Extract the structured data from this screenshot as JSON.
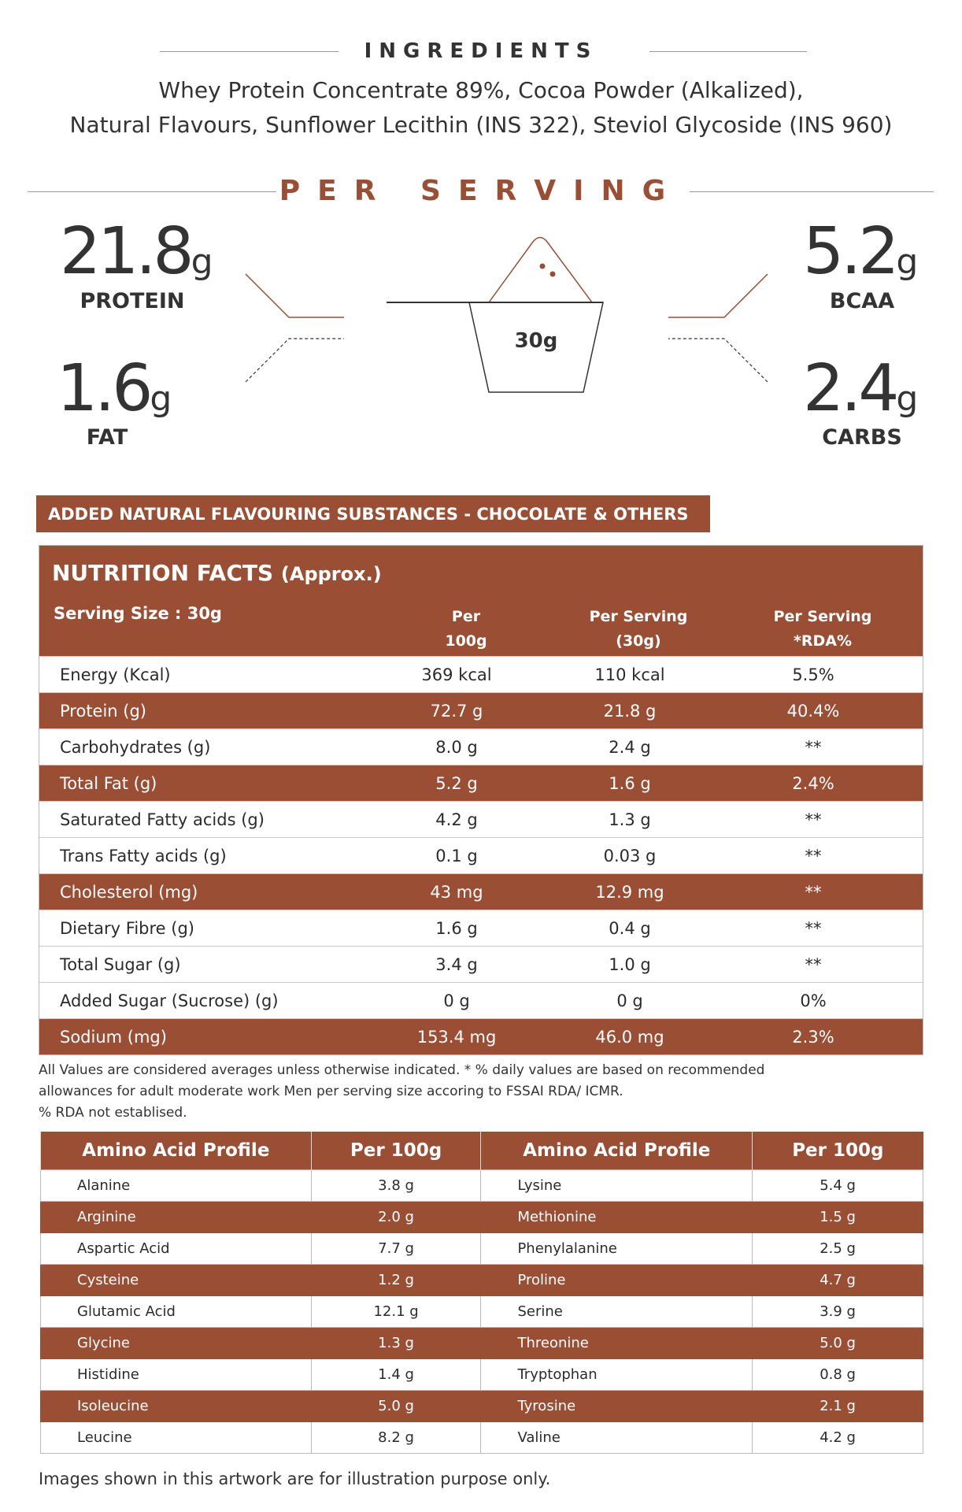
{
  "ingredients": {
    "title": "INGREDIENTS",
    "lines": [
      "Whey Protein Concentrate 89%, Cocoa Powder (Alkalized),",
      "Natural Flavours, Sunflower Lecithin (INS 322), Steviol Glycoside (INS 960)"
    ]
  },
  "per_serving": {
    "title": "PER SERVING",
    "scoop_label": "30g",
    "protein": {
      "value": "21.8",
      "unit": "g",
      "label": "PROTEIN"
    },
    "fat": {
      "value": "1.6",
      "unit": "g",
      "label": "FAT"
    },
    "bcaa": {
      "value": "5.2",
      "unit": "g",
      "label": "BCAA"
    },
    "carbs": {
      "value": "2.4",
      "unit": "g",
      "label": "CARBS"
    }
  },
  "banner": "ADDED NATURAL FLAVOURING SUBSTANCES - CHOCOLATE & OTHERS",
  "nutrition": {
    "title": "NUTRITION FACTS",
    "title_suffix": "(Approx.)",
    "serving_size": "Serving Size : 30g",
    "headers": [
      [
        "Per",
        "100g"
      ],
      [
        "Per Serving",
        "(30g)"
      ],
      [
        "Per Serving",
        "*RDA%"
      ]
    ],
    "rows": [
      [
        "Energy (Kcal)",
        "369 kcal",
        "110 kcal",
        "5.5%",
        false
      ],
      [
        "Protein (g)",
        "72.7 g",
        "21.8 g",
        "40.4%",
        true
      ],
      [
        "Carbohydrates (g)",
        "8.0 g",
        "2.4 g",
        "**",
        false
      ],
      [
        "Total Fat (g)",
        "5.2 g",
        "1.6 g",
        "2.4%",
        true
      ],
      [
        "Saturated Fatty acids (g)",
        "4.2 g",
        "1.3 g",
        "**",
        false
      ],
      [
        "Trans Fatty acids (g)",
        "0.1 g",
        "0.03 g",
        "**",
        false
      ],
      [
        "Cholesterol (mg)",
        "43 mg",
        "12.9 mg",
        "**",
        true
      ],
      [
        "Dietary Fibre (g)",
        "1.6 g",
        "0.4 g",
        "**",
        false
      ],
      [
        "Total Sugar (g)",
        "3.4 g",
        "1.0 g",
        "**",
        false
      ],
      [
        "Added Sugar (Sucrose) (g)",
        "0 g",
        "0 g",
        "0%",
        false
      ],
      [
        "Sodium (mg)",
        "153.4 mg",
        "46.0 mg",
        "2.3%",
        true
      ]
    ]
  },
  "footnotes": [
    "All Values are considered averages unless otherwise indicated. * % daily values are based on recommended",
    "allowances for adult moderate work Men per serving size accoring to FSSAI RDA/ ICMR.",
    "% RDA not establised."
  ],
  "amino": {
    "headers": [
      "Amino Acid Profile",
      "Per 100g",
      "Amino Acid Profile",
      "Per 100g"
    ],
    "rows": [
      [
        "Alanine",
        "3.8 g",
        "Lysine",
        "5.4 g"
      ],
      [
        "Arginine",
        "2.0 g",
        "Methionine",
        "1.5 g"
      ],
      [
        "Aspartic Acid",
        "7.7 g",
        "Phenylalanine",
        "2.5 g"
      ],
      [
        "Cysteine",
        "1.2 g",
        "Proline",
        "4.7 g"
      ],
      [
        "Glutamic Acid",
        "12.1 g",
        "Serine",
        "3.9 g"
      ],
      [
        "Glycine",
        "1.3 g",
        "Threonine",
        "5.0 g"
      ],
      [
        "Histidine",
        "1.4 g",
        "Tryptophan",
        "0.8 g"
      ],
      [
        "Isoleucine",
        "5.0 g",
        "Tyrosine",
        "2.1 g"
      ],
      [
        "Leucine",
        "8.2 g",
        "Valine",
        "4.2 g"
      ]
    ]
  },
  "disclaimer": "Images shown in this artwork are for illustration purpose only.",
  "colors": {
    "brand": "#9a4f35"
  }
}
